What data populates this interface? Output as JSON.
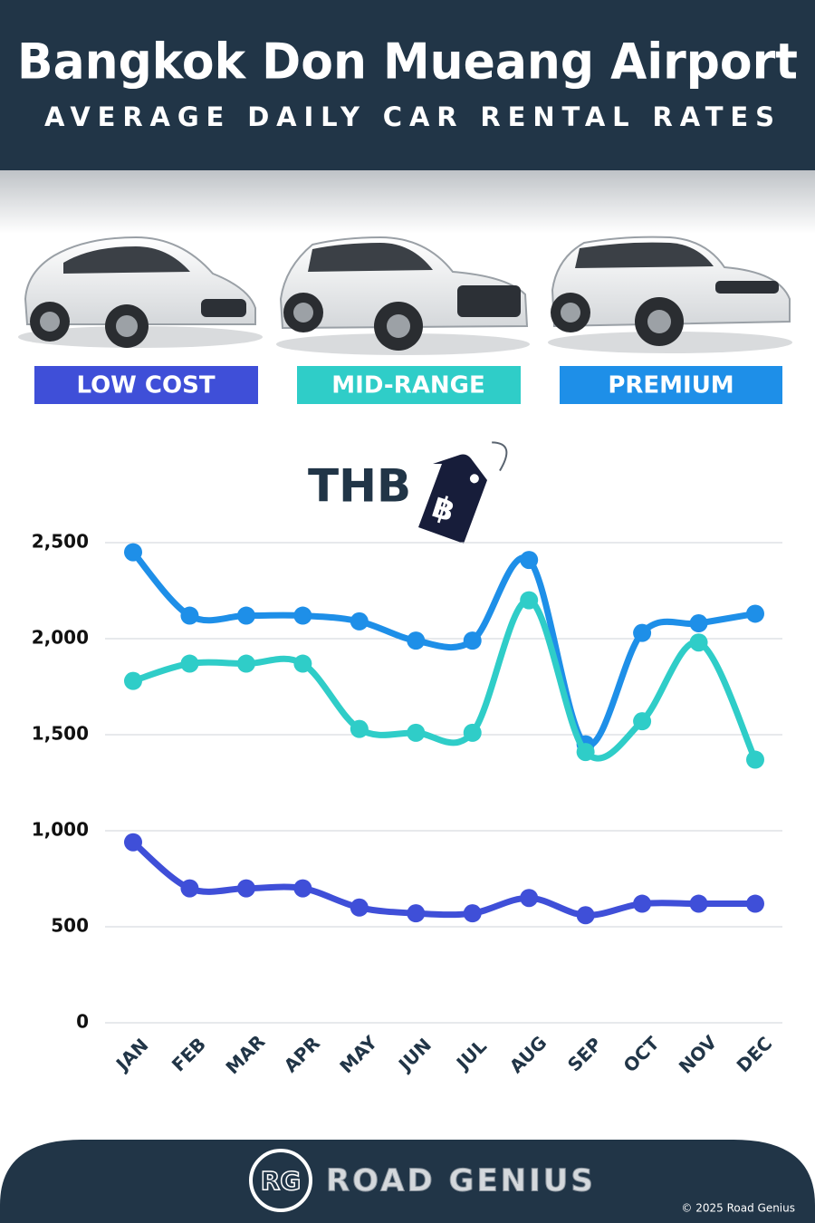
{
  "chart_data": {
    "type": "line",
    "title": "Bangkok Don Mueang Airport",
    "subtitle": "AVERAGE DAILY CAR RENTAL RATES",
    "y_label": "THB",
    "currency_symbol": "฿",
    "categories": [
      "JAN",
      "FEB",
      "MAR",
      "APR",
      "MAY",
      "JUN",
      "JUL",
      "AUG",
      "SEP",
      "OCT",
      "NOV",
      "DEC"
    ],
    "series": [
      {
        "name": "LOW COST",
        "color": "#3f4fd8",
        "values": [
          940,
          700,
          700,
          700,
          600,
          570,
          570,
          650,
          560,
          620,
          620,
          620
        ]
      },
      {
        "name": "MID-RANGE",
        "color": "#2fcdc8",
        "values": [
          1780,
          1870,
          1870,
          1870,
          1530,
          1510,
          1510,
          2200,
          1410,
          1570,
          1980,
          1370
        ]
      },
      {
        "name": "PREMIUM",
        "color": "#1e8fe8",
        "values": [
          2450,
          2120,
          2120,
          2120,
          2090,
          1990,
          1990,
          2410,
          1450,
          2030,
          2080,
          2130
        ]
      }
    ],
    "ylim": [
      0,
      2500
    ],
    "yticks": [
      0,
      500,
      {
        "value": 1000,
        "label": "1,000"
      },
      {
        "value": 1500,
        "label": "1,500"
      },
      {
        "value": 2000,
        "label": "2,000"
      },
      {
        "value": 2500,
        "label": "2,500"
      }
    ],
    "grid": true
  },
  "footer": {
    "logo": "RG",
    "brand": "ROAD GENIUS",
    "copyright": "© 2025 Road Genius"
  }
}
